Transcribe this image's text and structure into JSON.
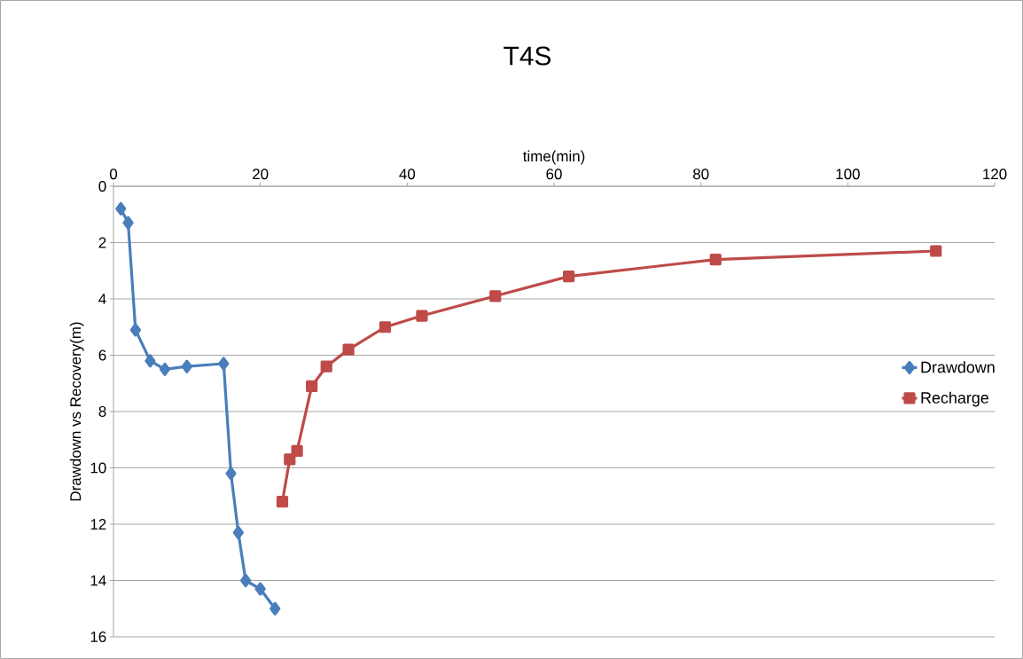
{
  "chart_data": {
    "type": "line",
    "title": "T4S",
    "xlabel": "time(min)",
    "ylabel": "Drawdown vs Recovery(m)",
    "series": [
      {
        "name": "Drawdown",
        "color": "#4a7ebb",
        "marker": "diamond",
        "x": [
          1,
          2,
          3,
          5,
          7,
          10,
          15,
          16,
          17,
          18,
          20,
          22
        ],
        "values": [
          0.8,
          1.3,
          5.1,
          6.2,
          6.5,
          6.4,
          6.3,
          10.2,
          12.3,
          14.0,
          14.3,
          15.0
        ]
      },
      {
        "name": "Recharge",
        "color": "#be4b48",
        "marker": "square",
        "x": [
          23,
          24,
          25,
          27,
          29,
          32,
          37,
          42,
          52,
          62,
          82,
          112
        ],
        "values": [
          11.2,
          9.7,
          9.4,
          7.1,
          6.4,
          5.8,
          5.0,
          4.6,
          3.9,
          3.2,
          2.6,
          2.3
        ]
      }
    ],
    "xlim": [
      0,
      120
    ],
    "xticks": [
      0,
      20,
      40,
      60,
      80,
      100,
      120
    ],
    "ylim": [
      16,
      0
    ],
    "yticks": [
      0,
      2,
      4,
      6,
      8,
      10,
      12,
      14,
      16
    ],
    "grid": "y",
    "legend": "right",
    "line_style": "solid"
  }
}
